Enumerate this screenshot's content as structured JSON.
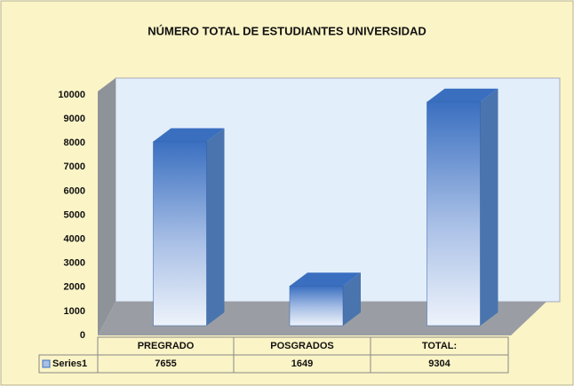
{
  "chart_data": {
    "type": "bar3d",
    "title": "NÚMERO TOTAL DE ESTUDIANTES UNIVERSIDAD",
    "categories": [
      "PREGRADO",
      "POSGRADOS",
      "TOTAL:"
    ],
    "series": [
      {
        "name": "Series1",
        "color": "#3a6fc0",
        "values": [
          7655,
          1649,
          9304
        ]
      }
    ],
    "ylim": [
      0,
      10000
    ],
    "yticks": [
      0,
      1000,
      2000,
      3000,
      4000,
      5000,
      6000,
      7000,
      8000,
      9000,
      10000
    ],
    "data_table": true
  }
}
